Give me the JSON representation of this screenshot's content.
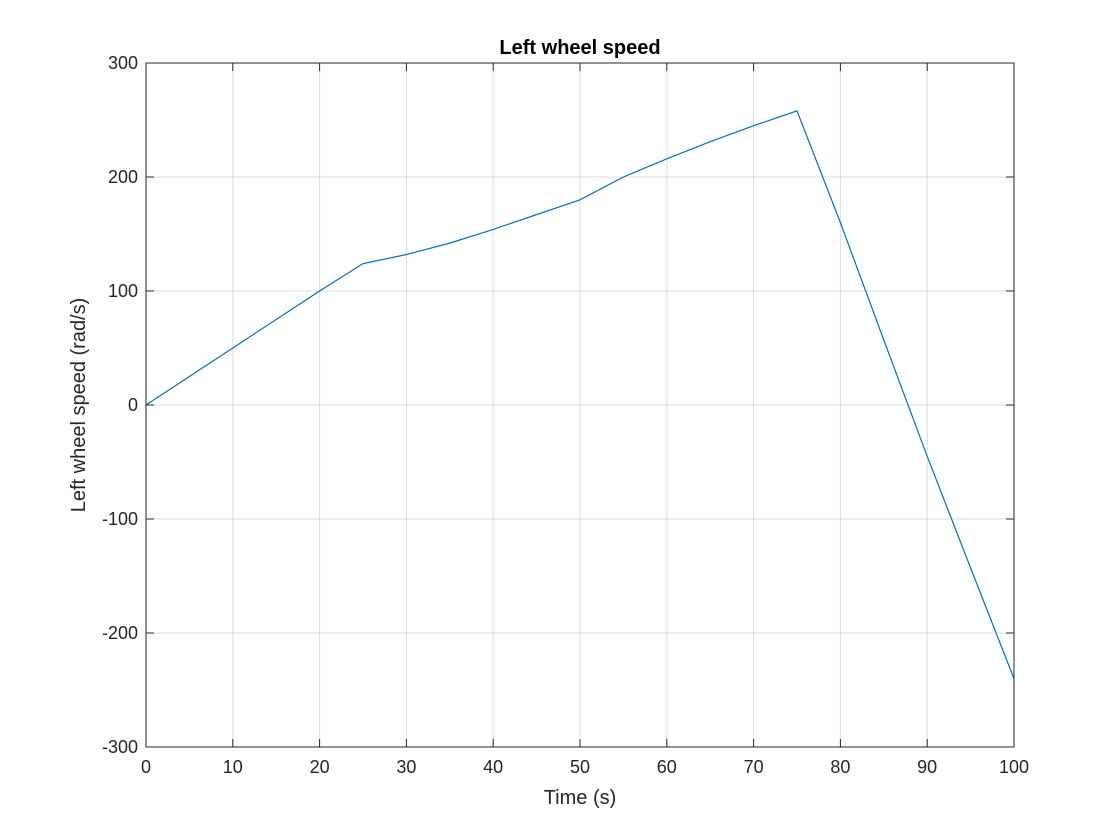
{
  "chart_data": {
    "type": "line",
    "title": "Left wheel speed",
    "xlabel": "Time (s)",
    "ylabel": "Left wheel speed (rad/s)",
    "xlim": [
      0,
      100
    ],
    "ylim": [
      -300,
      300
    ],
    "xticks": [
      0,
      10,
      20,
      30,
      40,
      50,
      60,
      70,
      80,
      90,
      100
    ],
    "yticks": [
      -300,
      -200,
      -100,
      0,
      100,
      200,
      300
    ],
    "grid": true,
    "series": [
      {
        "color": "#0072bd",
        "x": [
          0,
          10,
          20,
          25,
          30,
          35,
          40,
          45,
          50,
          55,
          60,
          65,
          70,
          75,
          80,
          85,
          90,
          95,
          100
        ],
        "y": [
          0,
          50,
          100,
          124,
          132,
          142,
          154,
          167,
          180,
          200,
          216,
          231,
          245,
          258,
          160,
          57,
          -45,
          -143,
          -240
        ]
      }
    ]
  }
}
